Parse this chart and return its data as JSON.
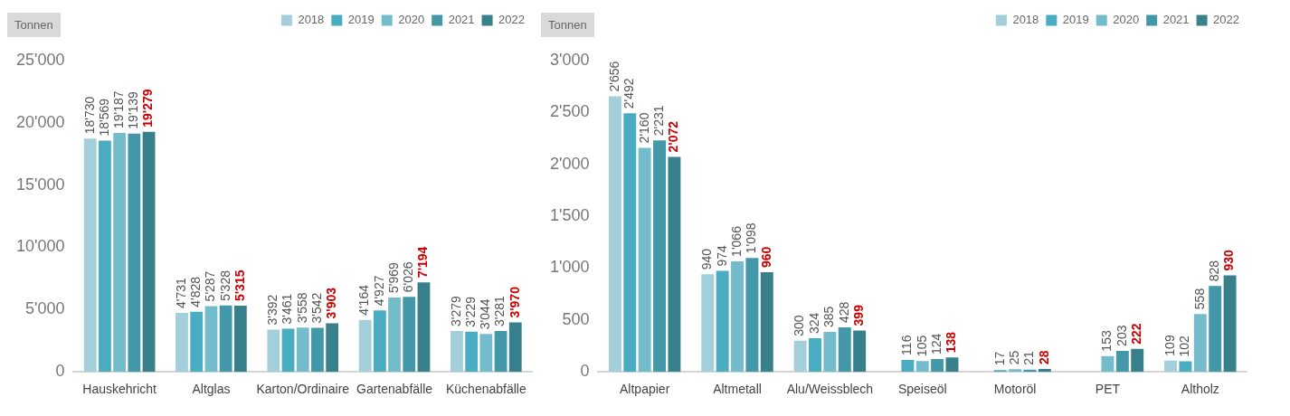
{
  "chart_data": [
    {
      "type": "bar",
      "ylabel": "Tonnen",
      "categories": [
        "Hauskehricht",
        "Altglas",
        "Karton/Ordinaire",
        "Gartenabfälle",
        "Küchenabfälle"
      ],
      "series": [
        {
          "name": "2018",
          "color": "#a3cfdb",
          "values": [
            18730,
            4731,
            3392,
            4164,
            3279
          ],
          "value_labels": [
            "18'730",
            "4'731",
            "3'392",
            "4'164",
            "3'279"
          ]
        },
        {
          "name": "2019",
          "color": "#4aacc0",
          "values": [
            18569,
            4828,
            3461,
            4927,
            3229
          ],
          "value_labels": [
            "18'569",
            "4'828",
            "3'461",
            "4'927",
            "3'229"
          ]
        },
        {
          "name": "2020",
          "color": "#74bccc",
          "values": [
            19187,
            5287,
            3558,
            5969,
            3044
          ],
          "value_labels": [
            "19'187",
            "5'287",
            "3'558",
            "5'969",
            "3'044"
          ]
        },
        {
          "name": "2021",
          "color": "#4298a8",
          "values": [
            19139,
            5328,
            3542,
            6026,
            3281
          ],
          "value_labels": [
            "19'139",
            "5'328",
            "3'542",
            "6'026",
            "3'281"
          ]
        },
        {
          "name": "2022",
          "color": "#37808c",
          "values": [
            19279,
            5315,
            3903,
            7194,
            3970
          ],
          "value_labels": [
            "19'279",
            "5'315",
            "3'903",
            "7'194",
            "3'970"
          ]
        }
      ],
      "ylim": [
        0,
        25000
      ],
      "yticks": [
        {
          "value": 0,
          "label": "0"
        },
        {
          "value": 5000,
          "label": "5'000"
        },
        {
          "value": 10000,
          "label": "10'000"
        },
        {
          "value": 15000,
          "label": "15'000"
        },
        {
          "value": 20000,
          "label": "20'000"
        },
        {
          "value": 25000,
          "label": "25'000"
        }
      ],
      "grid": false,
      "legend": "top right"
    },
    {
      "type": "bar",
      "ylabel": "Tonnen",
      "categories": [
        "Altpapier",
        "Altmetall",
        "Alu/Weissblech",
        "Speiseöl",
        "Motoröl",
        "PET",
        "Altholz"
      ],
      "series": [
        {
          "name": "2018",
          "color": "#a3cfdb",
          "values": [
            2656,
            940,
            300,
            null,
            null,
            null,
            109
          ],
          "value_labels": [
            "2'656",
            "940",
            "300",
            null,
            null,
            null,
            "109"
          ]
        },
        {
          "name": "2019",
          "color": "#4aacc0",
          "values": [
            2492,
            974,
            324,
            116,
            17,
            null,
            102
          ],
          "value_labels": [
            "2'492",
            "974",
            "324",
            "116",
            "17",
            null,
            "102"
          ]
        },
        {
          "name": "2020",
          "color": "#74bccc",
          "values": [
            2160,
            1066,
            385,
            105,
            25,
            153,
            558
          ],
          "value_labels": [
            "2'160",
            "1'066",
            "385",
            "105",
            "25",
            "153",
            "558"
          ]
        },
        {
          "name": "2021",
          "color": "#4298a8",
          "values": [
            2231,
            1098,
            428,
            124,
            21,
            203,
            828
          ],
          "value_labels": [
            "2'231",
            "1'098",
            "428",
            "124",
            "21",
            "203",
            "828"
          ]
        },
        {
          "name": "2022",
          "color": "#37808c",
          "values": [
            2072,
            960,
            399,
            138,
            28,
            222,
            930
          ],
          "value_labels": [
            "2'072",
            "960",
            "399",
            "138",
            "28",
            "222",
            "930"
          ]
        }
      ],
      "ylim": [
        0,
        3000
      ],
      "yticks": [
        {
          "value": 0,
          "label": "0"
        },
        {
          "value": 500,
          "label": "500"
        },
        {
          "value": 1000,
          "label": "1'000"
        },
        {
          "value": 1500,
          "label": "1'500"
        },
        {
          "value": 2000,
          "label": "2'000"
        },
        {
          "value": 2500,
          "label": "2'500"
        },
        {
          "value": 3000,
          "label": "3'000"
        }
      ],
      "grid": false,
      "legend": "top right"
    }
  ]
}
